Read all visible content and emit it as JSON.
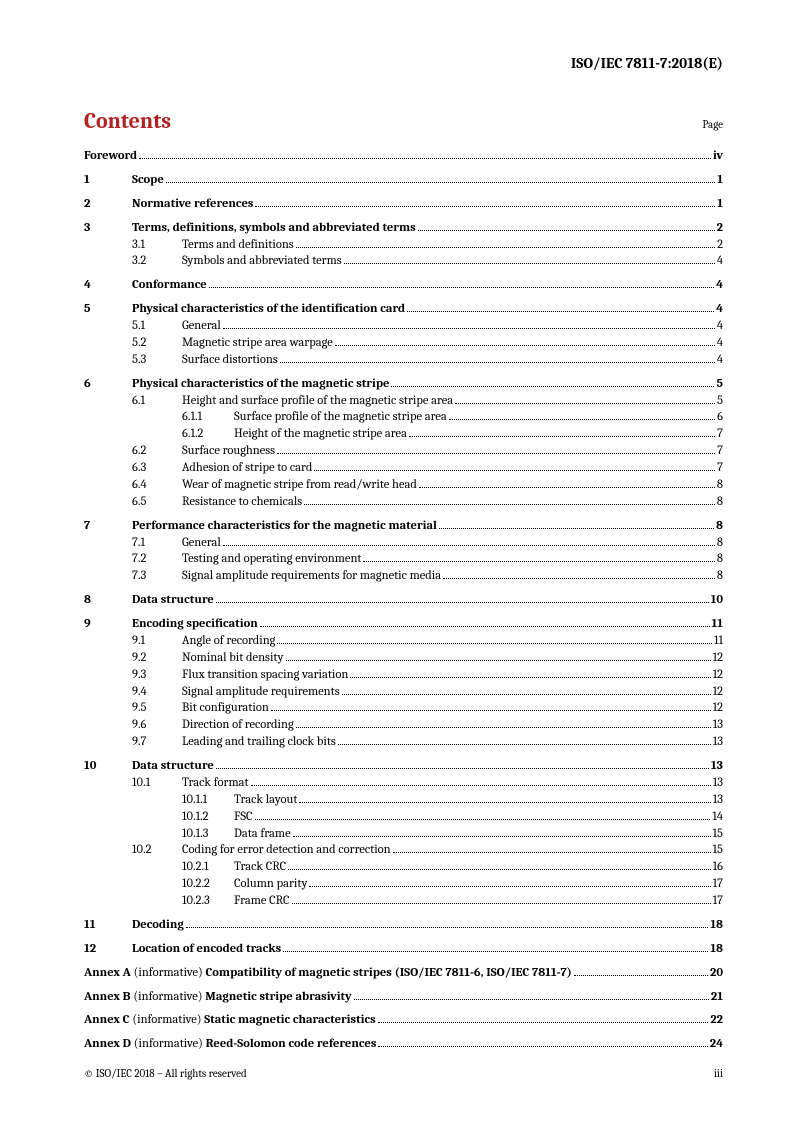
{
  "header": {
    "docId": "ISO/IEC 7811-7:2018(E)"
  },
  "contents": {
    "title": "Contents",
    "pageLabel": "Page"
  },
  "toc": {
    "foreword": {
      "title": "Foreword",
      "page": "iv"
    },
    "sections": [
      {
        "num": "1",
        "title": "Scope",
        "page": "1"
      },
      {
        "num": "2",
        "title": "Normative references",
        "page": "1"
      },
      {
        "num": "3",
        "title": "Terms, definitions, symbols and abbreviated terms",
        "page": "2",
        "subs": [
          {
            "num": "3.1",
            "title": "Terms and definitions",
            "page": "2"
          },
          {
            "num": "3.2",
            "title": "Symbols and abbreviated terms",
            "page": "4"
          }
        ]
      },
      {
        "num": "4",
        "title": "Conformance",
        "page": "4"
      },
      {
        "num": "5",
        "title": "Physical characteristics of the identification card",
        "page": "4",
        "subs": [
          {
            "num": "5.1",
            "title": "General",
            "page": "4"
          },
          {
            "num": "5.2",
            "title": "Magnetic stripe area warpage",
            "page": "4"
          },
          {
            "num": "5.3",
            "title": "Surface distortions",
            "page": "4"
          }
        ]
      },
      {
        "num": "6",
        "title": "Physical characteristics of the magnetic stripe",
        "page": "5",
        "subs": [
          {
            "num": "6.1",
            "title": "Height and surface profile of the magnetic stripe area",
            "page": "5",
            "subsubs": [
              {
                "num": "6.1.1",
                "title": "Surface profile of the magnetic stripe area",
                "page": "6"
              },
              {
                "num": "6.1.2",
                "title": "Height of the magnetic stripe area",
                "page": "7"
              }
            ]
          },
          {
            "num": "6.2",
            "title": "Surface roughness",
            "page": "7"
          },
          {
            "num": "6.3",
            "title": "Adhesion of stripe to card",
            "page": "7"
          },
          {
            "num": "6.4",
            "title": "Wear of magnetic stripe from read/write head",
            "page": "8"
          },
          {
            "num": "6.5",
            "title": "Resistance to chemicals",
            "page": "8"
          }
        ]
      },
      {
        "num": "7",
        "title": "Performance characteristics for the magnetic material",
        "page": "8",
        "subs": [
          {
            "num": "7.1",
            "title": "General",
            "page": "8"
          },
          {
            "num": "7.2",
            "title": "Testing and operating environment",
            "page": "8"
          },
          {
            "num": "7.3",
            "title": "Signal amplitude requirements for magnetic media",
            "page": "8"
          }
        ]
      },
      {
        "num": "8",
        "title": "Data structure",
        "page": "10"
      },
      {
        "num": "9",
        "title": "Encoding specification",
        "page": "11",
        "subs": [
          {
            "num": "9.1",
            "title": "Angle of recording",
            "page": "11"
          },
          {
            "num": "9.2",
            "title": "Nominal bit density",
            "page": "12"
          },
          {
            "num": "9.3",
            "title": "Flux transition spacing variation",
            "page": "12"
          },
          {
            "num": "9.4",
            "title": "Signal amplitude requirements",
            "page": "12"
          },
          {
            "num": "9.5",
            "title": "Bit configuration",
            "page": "12"
          },
          {
            "num": "9.6",
            "title": "Direction of recording",
            "page": "13"
          },
          {
            "num": "9.7",
            "title": "Leading and trailing clock bits",
            "page": "13"
          }
        ]
      },
      {
        "num": "10",
        "title": "Data structure",
        "page": "13",
        "subs": [
          {
            "num": "10.1",
            "title": "Track format",
            "page": "13",
            "subsubs": [
              {
                "num": "10.1.1",
                "title": "Track layout",
                "page": "13"
              },
              {
                "num": "10.1.2",
                "title": "FSC",
                "page": "14"
              },
              {
                "num": "10.1.3",
                "title": "Data frame",
                "page": "15"
              }
            ]
          },
          {
            "num": "10.2",
            "title": "Coding for error detection and correction",
            "page": "15",
            "subsubs": [
              {
                "num": "10.2.1",
                "title": "Track CRC",
                "page": "16"
              },
              {
                "num": "10.2.2",
                "title": "Column parity",
                "page": "17"
              },
              {
                "num": "10.2.3",
                "title": "Frame CRC",
                "page": "17"
              }
            ]
          }
        ]
      },
      {
        "num": "11",
        "title": "Decoding",
        "page": "18"
      },
      {
        "num": "12",
        "title": "Location of encoded tracks",
        "page": "18"
      }
    ],
    "annexes": [
      {
        "label": "Annex A",
        "note": "(informative)",
        "title": "Compatibility of magnetic stripes (ISO/IEC 7811-6, ISO/IEC 7811-7)",
        "page": "20"
      },
      {
        "label": "Annex B",
        "note": "(informative)",
        "title": "Magnetic stripe abrasivity",
        "page": "21"
      },
      {
        "label": "Annex C",
        "note": "(informative)",
        "title": "Static magnetic characteristics",
        "page": "22"
      },
      {
        "label": "Annex D",
        "note": "(informative)",
        "title": "Reed-Solomon code references",
        "page": "24"
      }
    ]
  },
  "footer": {
    "copyright": "© ISO/IEC 2018 – All rights reserved",
    "pageNum": "iii"
  }
}
